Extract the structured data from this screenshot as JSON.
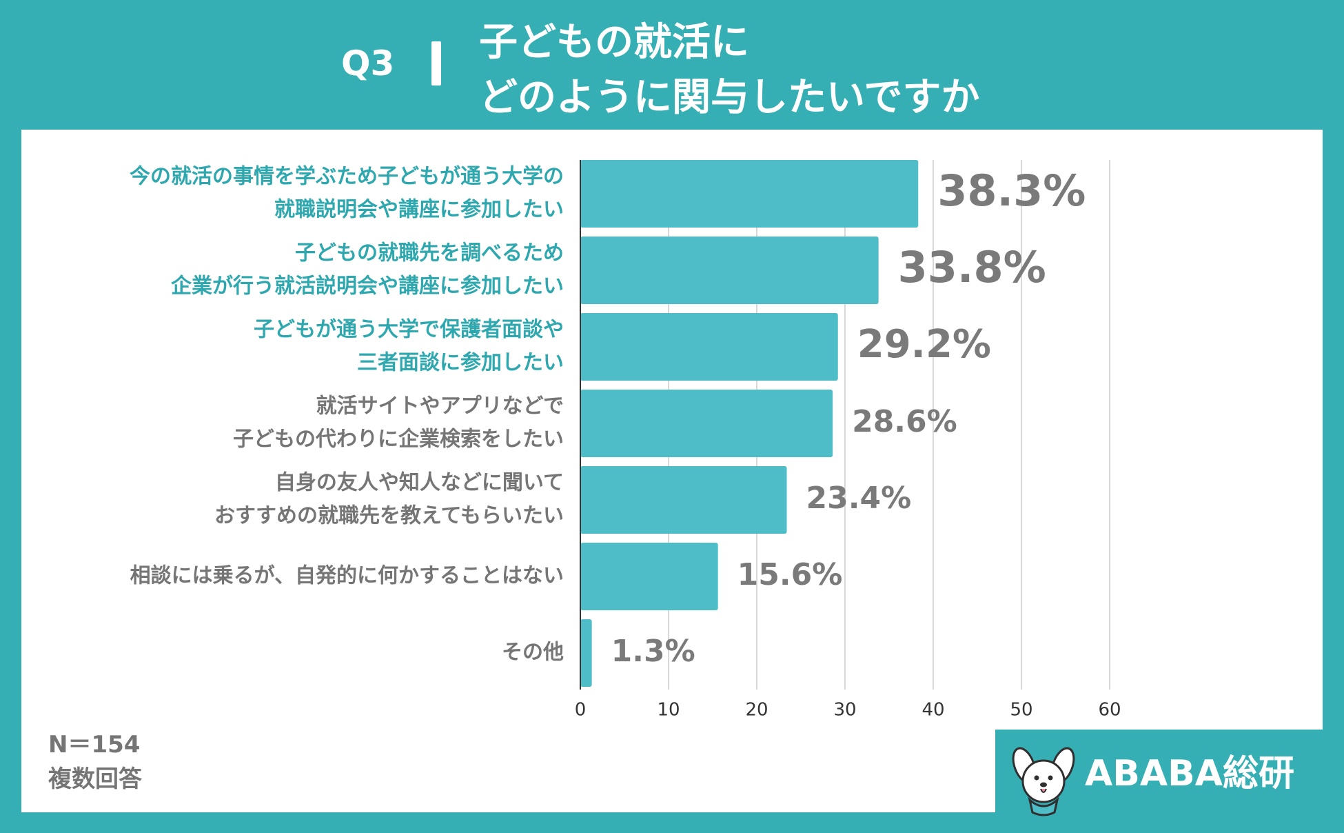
{
  "header": {
    "question_number": "Q3",
    "title_line1": "子どもの就活に",
    "title_line2": "どのように関与したいですか"
  },
  "chart_data": {
    "type": "bar",
    "orientation": "horizontal",
    "categories": [
      [
        "今の就活の事情を学ぶため子どもが通う大学の",
        "就職説明会や講座に参加したい"
      ],
      [
        "子どもの就職先を調べるため",
        "企業が行う就活説明会や講座に参加したい"
      ],
      [
        "子どもが通う大学で保護者面談や",
        "三者面談に参加したい"
      ],
      [
        "就活サイトやアプリなどで",
        "子どもの代わりに企業検索をしたい"
      ],
      [
        "自身の友人や知人などに聞いて",
        "おすすめの就職先を教えてもらいたい"
      ],
      [
        "相談には乗るが、自発的に何かすることはない"
      ],
      [
        "その他"
      ]
    ],
    "values": [
      38.3,
      33.8,
      29.2,
      28.6,
      23.4,
      15.6,
      1.3
    ],
    "value_labels": [
      "38.3%",
      "33.8%",
      "29.2%",
      "28.6%",
      "23.4%",
      "15.6%",
      "1.3%"
    ],
    "highlighted": [
      true,
      true,
      true,
      false,
      false,
      false,
      false
    ],
    "xlim": [
      0,
      60
    ],
    "xticks": [
      0,
      10,
      20,
      30,
      40,
      50,
      60
    ],
    "grid": true,
    "legend": "none"
  },
  "colors": {
    "background": "#36AFB4",
    "bar": "#4EBDC7",
    "highlight_label": "#2EA8AE",
    "normal_label": "#757575",
    "value_label": "#7A7A7A",
    "grid": "#D9D9D9",
    "axis": "#333333"
  },
  "footnote": {
    "sample_size": "N＝154",
    "answer_type": "複数回答"
  },
  "brand": {
    "name": "ABABA総研",
    "mascot_icon": "dog-mascot-icon"
  }
}
